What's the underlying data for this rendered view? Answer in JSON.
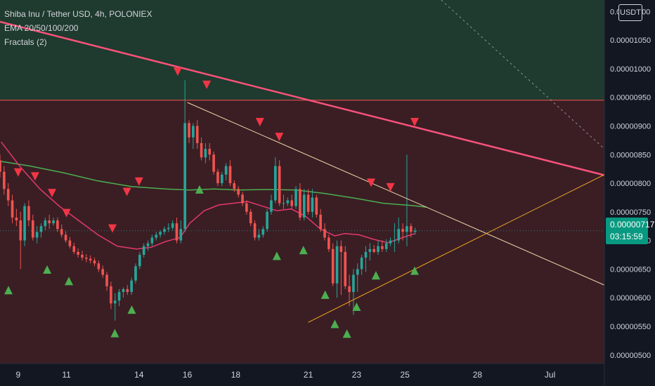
{
  "legend": {
    "symbol": "Shiba Inu / Tether USD, 4h, POLONIEX",
    "indicator_ema": "EMA 20/50/100/200",
    "indicator_fractals": "Fractals (2)"
  },
  "currency_badge": "USDT",
  "current_price": {
    "value": "0.00000717",
    "countdown": "03:15:59"
  },
  "colors": {
    "background": "#131722",
    "upper_zone": "#1f3a2e",
    "lower_zone": "#3a1e24",
    "bull_candle": "#26a69a",
    "bear_candle": "#ef5350",
    "ema_short": "#e5386f",
    "ema_long": "#4caf50",
    "resistance_line": "#f7527a",
    "trend_line_upper": "#f0d5a8",
    "trend_line_lower": "#f5a623",
    "fractal_up": "#4caf50",
    "fractal_down": "#f23645",
    "price_tag": "#089981"
  },
  "chart_data": {
    "type": "candlestick",
    "title": "Shiba Inu / Tether USD, 4h, POLONIEX",
    "y_axis": {
      "labels": [
        "0.00001100",
        "0.00001050",
        "0.00001000",
        "0.00000950",
        "0.00000900",
        "0.00000850",
        "0.00000800",
        "0.00000750",
        "0.00000700",
        "0.00000650",
        "0.00000600",
        "0.00000550",
        "0.00000500"
      ],
      "range": [
        4.85e-06,
        1.12e-05
      ]
    },
    "x_axis": {
      "labels": [
        "9",
        "11",
        "14",
        "16",
        "18",
        "21",
        "23",
        "25",
        "28",
        "Jul"
      ],
      "positions": [
        7.5,
        9.5,
        12.5,
        14.5,
        16.5,
        19.5,
        21.5,
        23.5,
        26.5,
        29.5
      ],
      "range": [
        6.75,
        31.75
      ]
    },
    "zones": [
      {
        "name": "upper",
        "from": 9.45e-06,
        "to": 1.12e-05
      },
      {
        "name": "lower",
        "from": 4.85e-06,
        "to": 9.45e-06
      }
    ],
    "horizontal_level": 9.45e-06,
    "ema_short": {
      "x": [
        6.8,
        7.6,
        8.4,
        9.2,
        10.0,
        10.8,
        11.6,
        12.4,
        13.0,
        13.6,
        14.2,
        14.6,
        15.2,
        15.8,
        16.4,
        17.0,
        17.6,
        18.2,
        18.8,
        19.4,
        20.0,
        20.6,
        21.0,
        21.6,
        22.2,
        22.8,
        23.4,
        23.9
      ],
      "y": [
        8.72e-06,
        8.28e-06,
        7.9e-06,
        7.6e-06,
        7.35e-06,
        7.1e-06,
        6.9e-06,
        6.85e-06,
        6.88e-06,
        6.98e-06,
        7.05e-06,
        7.3e-06,
        7.52e-06,
        7.62e-06,
        7.65e-06,
        7.68e-06,
        7.6e-06,
        7.52e-06,
        7.55e-06,
        7.42e-06,
        7.2e-06,
        7.08e-06,
        7.12e-06,
        7.1e-06,
        7.02e-06,
        6.96e-06,
        7.05e-06,
        7.12e-06
      ]
    },
    "ema_long": {
      "x": [
        6.8,
        8.0,
        9.4,
        10.8,
        12.2,
        13.6,
        14.6,
        15.6,
        16.6,
        17.8,
        19.0,
        20.2,
        21.4,
        22.6,
        23.8,
        24.4
      ],
      "y": [
        8.38e-06,
        8.3e-06,
        8.18e-06,
        8.04e-06,
        7.94e-06,
        7.9e-06,
        7.88e-06,
        7.9e-06,
        7.88e-06,
        7.89e-06,
        7.88e-06,
        7.82e-06,
        7.74e-06,
        7.65e-06,
        7.61e-06,
        7.58e-06
      ]
    },
    "resistance_line": {
      "x": [
        6.75,
        31.75
      ],
      "y": [
        1.082e-05,
        8.14e-06
      ]
    },
    "trend_line_upper": {
      "x": [
        14.5,
        31.75
      ],
      "y": [
        9.41e-06,
        6.22e-06
      ]
    },
    "trend_line_lower": {
      "x": [
        19.5,
        31.75
      ],
      "y": [
        5.57e-06,
        8.15e-06
      ]
    },
    "dashed_line": {
      "x": [
        25.0,
        31.75
      ],
      "y": [
        1.12e-05,
        8.6e-06
      ]
    },
    "candles": {
      "x": [
        6.75,
        6.92,
        7.09,
        7.26,
        7.43,
        7.6,
        7.77,
        7.94,
        8.11,
        8.28,
        8.45,
        8.62,
        8.79,
        8.96,
        9.13,
        9.3,
        9.47,
        9.64,
        9.81,
        9.98,
        10.15,
        10.32,
        10.49,
        10.66,
        10.83,
        11.0,
        11.17,
        11.34,
        11.51,
        11.68,
        11.85,
        12.02,
        12.19,
        12.36,
        12.53,
        12.7,
        12.87,
        13.04,
        13.21,
        13.38,
        13.55,
        13.72,
        13.89,
        14.06,
        14.23,
        14.4,
        14.57,
        14.74,
        14.91,
        15.08,
        15.25,
        15.42,
        15.59,
        15.76,
        15.93,
        16.1,
        16.27,
        16.44,
        16.61,
        16.78,
        16.95,
        17.12,
        17.29,
        17.46,
        17.63,
        17.8,
        17.97,
        18.14,
        18.31,
        18.48,
        18.65,
        18.82,
        18.99,
        19.16,
        19.33,
        19.5,
        19.67,
        19.84,
        20.01,
        20.18,
        20.35,
        20.52,
        20.69,
        20.86,
        21.03,
        21.2,
        21.37,
        21.54,
        21.71,
        21.88,
        22.05,
        22.22,
        22.39,
        22.56,
        22.73,
        22.9,
        23.07,
        23.24,
        23.41,
        23.58,
        23.75,
        23.92
      ],
      "o": [
        8.4e-06,
        8.2e-06,
        7.9e-06,
        7.7e-06,
        7.4e-06,
        7.35e-06,
        7e-06,
        7.6e-06,
        7.35e-06,
        7.05e-06,
        7.15e-06,
        7.25e-06,
        7.35e-06,
        7.3e-06,
        7.35e-06,
        7.2e-06,
        7.1e-06,
        7e-06,
        6.9e-06,
        6.8e-06,
        6.75e-06,
        6.7e-06,
        6.68e-06,
        6.65e-06,
        6.6e-06,
        6.5e-06,
        6.4e-06,
        6.2e-06,
        5.9e-06,
        5.95e-06,
        6.1e-06,
        6.15e-06,
        6.1e-06,
        6.3e-06,
        6.55e-06,
        6.75e-06,
        6.9e-06,
        6.95e-06,
        7.05e-06,
        7.1e-06,
        7.15e-06,
        7.2e-06,
        7.22e-06,
        7.3e-06,
        7e-06,
        7.2e-06,
        9.05e-06,
        8.8e-06,
        9e-06,
        8.7e-06,
        8.45e-06,
        8.6e-06,
        8.5e-06,
        8.2e-06,
        8e-06,
        8.15e-06,
        8.3e-06,
        8e-06,
        7.9e-06,
        7.8e-06,
        7.65e-06,
        7.5e-06,
        7.3e-06,
        7.05e-06,
        7.1e-06,
        7.2e-06,
        7.5e-06,
        7.7e-06,
        8.3e-06,
        7.65e-06,
        7.65e-06,
        7.7e-06,
        7.6e-06,
        7.9e-06,
        7.4e-06,
        7.8e-06,
        7.5e-06,
        7.75e-06,
        7.45e-06,
        7.2e-06,
        7.05e-06,
        6.85e-06,
        6.25e-06,
        6.9e-06,
        6.8e-06,
        6.2e-06,
        6.1e-06,
        6.4e-06,
        6.5e-06,
        6.7e-06,
        6.8e-06,
        6.85e-06,
        6.8e-06,
        6.9e-06,
        6.85e-06,
        6.95e-06,
        7e-06,
        7e-06,
        7.2e-06,
        7.15e-06,
        7.25e-06,
        7.15e-06
      ],
      "h": [
        8.5e-06,
        8.3e-06,
        8e-06,
        7.8e-06,
        7.55e-06,
        7.5e-06,
        7.65e-06,
        7.7e-06,
        7.45e-06,
        7.25e-06,
        7.3e-06,
        7.4e-06,
        7.45e-06,
        7.4e-06,
        7.4e-06,
        7.28e-06,
        7.16e-06,
        7.06e-06,
        6.96e-06,
        6.86e-06,
        6.82e-06,
        6.76e-06,
        6.74e-06,
        6.7e-06,
        6.65e-06,
        6.56e-06,
        6.45e-06,
        6.28e-06,
        6.08e-06,
        6.15e-06,
        6.18e-06,
        6.22e-06,
        6.35e-06,
        6.6e-06,
        6.8e-06,
        6.95e-06,
        7e-06,
        7.1e-06,
        7.15e-06,
        7.18e-06,
        7.24e-06,
        7.3e-06,
        7.35e-06,
        7.4e-06,
        7.35e-06,
        9.8e-06,
        9.1e-06,
        9.05e-06,
        9.1e-06,
        8.8e-06,
        8.7e-06,
        8.7e-06,
        8.55e-06,
        8.25e-06,
        8.2e-06,
        8.35e-06,
        8.4e-06,
        8.05e-06,
        7.95e-06,
        7.85e-06,
        7.7e-06,
        7.55e-06,
        7.35e-06,
        7.2e-06,
        7.25e-06,
        7.55e-06,
        7.8e-06,
        8.45e-06,
        8.4e-06,
        7.8e-06,
        7.75e-06,
        7.8e-06,
        7.95e-06,
        8e-06,
        7.9e-06,
        7.9e-06,
        7.9e-06,
        7.8e-06,
        7.55e-06,
        7.3e-06,
        7.1e-06,
        6.95e-06,
        7e-06,
        7e-06,
        6.9e-06,
        6.4e-06,
        6.5e-06,
        6.6e-06,
        6.75e-06,
        6.9e-06,
        6.95e-06,
        6.92e-06,
        7e-06,
        7e-06,
        7.02e-06,
        7.05e-06,
        7.3e-06,
        7.4e-06,
        7.3e-06,
        8.5e-06,
        7.3e-06,
        7.22e-06
      ],
      "l": [
        8.1e-06,
        7.8e-06,
        7.6e-06,
        7.3e-06,
        7.25e-06,
        6.5e-06,
        6.9e-06,
        7.25e-06,
        7e-06,
        6.95e-06,
        7.05e-06,
        7.18e-06,
        7.2e-06,
        7.26e-06,
        7.15e-06,
        7.05e-06,
        6.96e-06,
        6.86e-06,
        6.76e-06,
        6.7e-06,
        6.65e-06,
        6.62e-06,
        6.6e-06,
        6.55e-06,
        6.45e-06,
        6.35e-06,
        6.12e-06,
        5.8e-06,
        5.6e-06,
        5.85e-06,
        6e-06,
        6.05e-06,
        6.05e-06,
        6.25e-06,
        6.5e-06,
        6.7e-06,
        6.82e-06,
        6.9e-06,
        7e-06,
        7.05e-06,
        7.1e-06,
        7.15e-06,
        7.18e-06,
        6.95e-06,
        6.95e-06,
        7.15e-06,
        8.7e-06,
        8.6e-06,
        8.6e-06,
        8.4e-06,
        8.35e-06,
        8.4e-06,
        8.15e-06,
        7.95e-06,
        7.95e-06,
        8.05e-06,
        7.95e-06,
        7.85e-06,
        7.75e-06,
        7.6e-06,
        7.45e-06,
        7.25e-06,
        7e-06,
        7e-06,
        7.05e-06,
        7.15e-06,
        7.45e-06,
        7.65e-06,
        7.6e-06,
        7.55e-06,
        7.6e-06,
        7.55e-06,
        7.55e-06,
        7.35e-06,
        7.35e-06,
        7.45e-06,
        7.4e-06,
        7.4e-06,
        7.15e-06,
        7e-06,
        6.8e-06,
        6.2e-06,
        6e-06,
        6.05e-06,
        6.15e-06,
        5.85e-06,
        5.7e-06,
        6.1e-06,
        6.4e-06,
        6.45e-06,
        6.65e-06,
        6.78e-06,
        6.75e-06,
        6.8e-06,
        6.8e-06,
        6.9e-06,
        6.8e-06,
        6.95e-06,
        7e-06,
        6.9e-06,
        7.05e-06,
        7.1e-06
      ],
      "c": [
        8.2e-06,
        7.9e-06,
        7.7e-06,
        7.4e-06,
        7.35e-06,
        7e-06,
        7.6e-06,
        7.35e-06,
        7.05e-06,
        7.15e-06,
        7.25e-06,
        7.35e-06,
        7.3e-06,
        7.35e-06,
        7.2e-06,
        7.1e-06,
        7e-06,
        6.9e-06,
        6.8e-06,
        6.75e-06,
        6.7e-06,
        6.68e-06,
        6.65e-06,
        6.6e-06,
        6.5e-06,
        6.4e-06,
        6.2e-06,
        5.9e-06,
        5.95e-06,
        6.1e-06,
        6.15e-06,
        6.1e-06,
        6.3e-06,
        6.55e-06,
        6.75e-06,
        6.9e-06,
        6.95e-06,
        7.05e-06,
        7.1e-06,
        7.15e-06,
        7.2e-06,
        7.22e-06,
        7.3e-06,
        7e-06,
        7.2e-06,
        9.05e-06,
        8.8e-06,
        9e-06,
        8.7e-06,
        8.45e-06,
        8.6e-06,
        8.5e-06,
        8.2e-06,
        8e-06,
        8.15e-06,
        8.3e-06,
        8e-06,
        7.9e-06,
        7.8e-06,
        7.65e-06,
        7.5e-06,
        7.3e-06,
        7.05e-06,
        7.1e-06,
        7.2e-06,
        7.5e-06,
        7.7e-06,
        8.3e-06,
        7.65e-06,
        7.65e-06,
        7.7e-06,
        7.6e-06,
        7.9e-06,
        7.4e-06,
        7.8e-06,
        7.5e-06,
        7.75e-06,
        7.45e-06,
        7.2e-06,
        7.05e-06,
        6.85e-06,
        6.25e-06,
        6.9e-06,
        6.8e-06,
        6.2e-06,
        6.1e-06,
        6.4e-06,
        6.5e-06,
        6.7e-06,
        6.8e-06,
        6.85e-06,
        6.8e-06,
        6.9e-06,
        6.85e-06,
        6.95e-06,
        7e-06,
        7e-06,
        7.2e-06,
        7.15e-06,
        7.25e-06,
        7.15e-06,
        7.17e-06
      ]
    },
    "fractals_up": {
      "x": [
        7.1,
        8.7,
        9.6,
        11.5,
        12.2,
        15.0,
        18.2,
        19.3,
        20.2,
        20.6,
        21.1,
        21.5,
        22.3,
        23.9
      ],
      "y": [
        6.12e-06,
        6.48e-06,
        6.28e-06,
        5.37e-06,
        5.78e-06,
        7.88e-06,
        6.72e-06,
        6.82e-06,
        6.04e-06,
        5.53e-06,
        5.36e-06,
        5.83e-06,
        6.38e-06,
        6.46e-06
      ]
    },
    "fractals_down": {
      "x": [
        7.5,
        8.2,
        8.9,
        9.5,
        11.4,
        12.0,
        12.5,
        14.1,
        15.3,
        17.5,
        18.3,
        22.1,
        22.9,
        23.9
      ],
      "y": [
        8.2e-06,
        8.13e-06,
        7.84e-06,
        7.49e-06,
        7.22e-06,
        7.86e-06,
        8.04e-06,
        9.96e-06,
        9.73e-06,
        9.08e-06,
        8.82e-06,
        8.02e-06,
        7.94e-06,
        9.08e-06
      ]
    }
  }
}
